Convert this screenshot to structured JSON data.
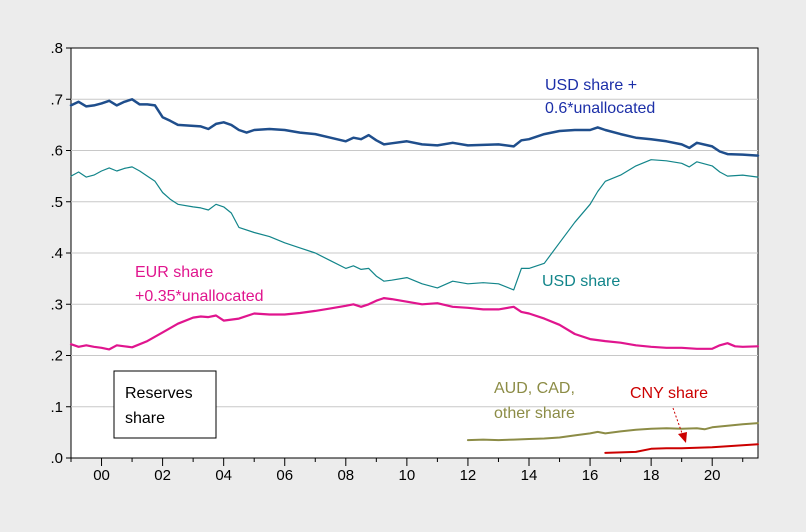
{
  "chart_data": {
    "type": "line",
    "x_start": 1999.0,
    "x_end": 2021.5,
    "xlim": [
      1999.0,
      2021.5
    ],
    "ylim": [
      0.0,
      0.8
    ],
    "x_ticks": [
      {
        "value": 2000,
        "label": "00"
      },
      {
        "value": 2002,
        "label": "02"
      },
      {
        "value": 2004,
        "label": "04"
      },
      {
        "value": 2006,
        "label": "06"
      },
      {
        "value": 2008,
        "label": "08"
      },
      {
        "value": 2010,
        "label": "10"
      },
      {
        "value": 2012,
        "label": "12"
      },
      {
        "value": 2014,
        "label": "14"
      },
      {
        "value": 2016,
        "label": "16"
      },
      {
        "value": 2018,
        "label": "18"
      },
      {
        "value": 2020,
        "label": "20"
      }
    ],
    "y_ticks": [
      {
        "value": 0.0,
        "label": ".0"
      },
      {
        "value": 0.1,
        "label": ".1"
      },
      {
        "value": 0.2,
        "label": ".2"
      },
      {
        "value": 0.3,
        "label": ".3"
      },
      {
        "value": 0.4,
        "label": ".4"
      },
      {
        "value": 0.5,
        "label": ".5"
      },
      {
        "value": 0.6,
        "label": ".6"
      },
      {
        "value": 0.7,
        "label": ".7"
      },
      {
        "value": 0.8,
        "label": ".8"
      }
    ],
    "grid": true,
    "legend_box": {
      "line1": "Reserves",
      "line2": "share"
    },
    "series": [
      {
        "name": "USD share + 0.6*unallocated",
        "color": "#1f4e8c",
        "width": 2.5,
        "points": [
          [
            1999.0,
            0.688
          ],
          [
            1999.25,
            0.695
          ],
          [
            1999.5,
            0.686
          ],
          [
            1999.75,
            0.688
          ],
          [
            2000.0,
            0.692
          ],
          [
            2000.25,
            0.697
          ],
          [
            2000.5,
            0.688
          ],
          [
            2000.75,
            0.695
          ],
          [
            2001.0,
            0.7
          ],
          [
            2001.25,
            0.69
          ],
          [
            2001.5,
            0.69
          ],
          [
            2001.75,
            0.688
          ],
          [
            2002.0,
            0.665
          ],
          [
            2002.25,
            0.658
          ],
          [
            2002.5,
            0.65
          ],
          [
            2003.0,
            0.648
          ],
          [
            2003.25,
            0.647
          ],
          [
            2003.5,
            0.642
          ],
          [
            2003.75,
            0.652
          ],
          [
            2004.0,
            0.655
          ],
          [
            2004.25,
            0.65
          ],
          [
            2004.5,
            0.64
          ],
          [
            2004.75,
            0.635
          ],
          [
            2005.0,
            0.64
          ],
          [
            2005.5,
            0.642
          ],
          [
            2006.0,
            0.64
          ],
          [
            2006.5,
            0.635
          ],
          [
            2007.0,
            0.632
          ],
          [
            2007.5,
            0.625
          ],
          [
            2008.0,
            0.618
          ],
          [
            2008.25,
            0.625
          ],
          [
            2008.5,
            0.622
          ],
          [
            2008.75,
            0.63
          ],
          [
            2009.0,
            0.62
          ],
          [
            2009.25,
            0.612
          ],
          [
            2009.5,
            0.614
          ],
          [
            2010.0,
            0.618
          ],
          [
            2010.5,
            0.612
          ],
          [
            2011.0,
            0.61
          ],
          [
            2011.5,
            0.615
          ],
          [
            2012.0,
            0.61
          ],
          [
            2012.5,
            0.611
          ],
          [
            2013.0,
            0.612
          ],
          [
            2013.5,
            0.608
          ],
          [
            2013.75,
            0.62
          ],
          [
            2014.0,
            0.622
          ],
          [
            2014.5,
            0.632
          ],
          [
            2015.0,
            0.638
          ],
          [
            2015.5,
            0.64
          ],
          [
            2016.0,
            0.64
          ],
          [
            2016.25,
            0.645
          ],
          [
            2016.5,
            0.64
          ],
          [
            2017.0,
            0.632
          ],
          [
            2017.5,
            0.625
          ],
          [
            2018.0,
            0.622
          ],
          [
            2018.5,
            0.618
          ],
          [
            2019.0,
            0.612
          ],
          [
            2019.25,
            0.605
          ],
          [
            2019.5,
            0.615
          ],
          [
            2020.0,
            0.608
          ],
          [
            2020.25,
            0.598
          ],
          [
            2020.5,
            0.593
          ],
          [
            2021.0,
            0.592
          ],
          [
            2021.5,
            0.59
          ]
        ]
      },
      {
        "name": "USD share",
        "color": "#12858a",
        "width": 1.2,
        "points": [
          [
            1999.0,
            0.55
          ],
          [
            1999.25,
            0.558
          ],
          [
            1999.5,
            0.548
          ],
          [
            1999.75,
            0.552
          ],
          [
            2000.0,
            0.56
          ],
          [
            2000.25,
            0.566
          ],
          [
            2000.5,
            0.56
          ],
          [
            2000.75,
            0.565
          ],
          [
            2001.0,
            0.568
          ],
          [
            2001.25,
            0.56
          ],
          [
            2001.5,
            0.55
          ],
          [
            2001.75,
            0.54
          ],
          [
            2002.0,
            0.518
          ],
          [
            2002.25,
            0.505
          ],
          [
            2002.5,
            0.495
          ],
          [
            2003.0,
            0.49
          ],
          [
            2003.25,
            0.488
          ],
          [
            2003.5,
            0.484
          ],
          [
            2003.75,
            0.495
          ],
          [
            2004.0,
            0.49
          ],
          [
            2004.25,
            0.478
          ],
          [
            2004.5,
            0.45
          ],
          [
            2005.0,
            0.44
          ],
          [
            2005.5,
            0.432
          ],
          [
            2006.0,
            0.42
          ],
          [
            2006.5,
            0.41
          ],
          [
            2007.0,
            0.4
          ],
          [
            2007.5,
            0.385
          ],
          [
            2008.0,
            0.37
          ],
          [
            2008.25,
            0.375
          ],
          [
            2008.5,
            0.368
          ],
          [
            2008.75,
            0.37
          ],
          [
            2009.0,
            0.355
          ],
          [
            2009.25,
            0.345
          ],
          [
            2009.5,
            0.347
          ],
          [
            2010.0,
            0.352
          ],
          [
            2010.5,
            0.34
          ],
          [
            2011.0,
            0.332
          ],
          [
            2011.5,
            0.345
          ],
          [
            2012.0,
            0.34
          ],
          [
            2012.5,
            0.342
          ],
          [
            2013.0,
            0.34
          ],
          [
            2013.5,
            0.328
          ],
          [
            2013.75,
            0.37
          ],
          [
            2014.0,
            0.37
          ],
          [
            2014.5,
            0.38
          ],
          [
            2015.0,
            0.42
          ],
          [
            2015.5,
            0.46
          ],
          [
            2016.0,
            0.495
          ],
          [
            2016.25,
            0.52
          ],
          [
            2016.5,
            0.54
          ],
          [
            2017.0,
            0.552
          ],
          [
            2017.5,
            0.57
          ],
          [
            2018.0,
            0.582
          ],
          [
            2018.5,
            0.58
          ],
          [
            2019.0,
            0.575
          ],
          [
            2019.25,
            0.568
          ],
          [
            2019.5,
            0.578
          ],
          [
            2020.0,
            0.57
          ],
          [
            2020.25,
            0.558
          ],
          [
            2020.5,
            0.55
          ],
          [
            2021.0,
            0.552
          ],
          [
            2021.5,
            0.548
          ]
        ]
      },
      {
        "name": "EUR share +0.35*unallocated",
        "color": "#e0158e",
        "width": 2.2,
        "points": [
          [
            1999.0,
            0.222
          ],
          [
            1999.25,
            0.217
          ],
          [
            1999.5,
            0.22
          ],
          [
            1999.75,
            0.217
          ],
          [
            2000.0,
            0.215
          ],
          [
            2000.25,
            0.212
          ],
          [
            2000.5,
            0.22
          ],
          [
            2000.75,
            0.218
          ],
          [
            2001.0,
            0.216
          ],
          [
            2001.5,
            0.228
          ],
          [
            2002.0,
            0.245
          ],
          [
            2002.5,
            0.262
          ],
          [
            2003.0,
            0.274
          ],
          [
            2003.25,
            0.276
          ],
          [
            2003.5,
            0.275
          ],
          [
            2003.75,
            0.278
          ],
          [
            2004.0,
            0.268
          ],
          [
            2004.5,
            0.272
          ],
          [
            2005.0,
            0.282
          ],
          [
            2005.5,
            0.28
          ],
          [
            2006.0,
            0.28
          ],
          [
            2006.5,
            0.283
          ],
          [
            2007.0,
            0.287
          ],
          [
            2007.5,
            0.292
          ],
          [
            2008.0,
            0.297
          ],
          [
            2008.25,
            0.3
          ],
          [
            2008.5,
            0.295
          ],
          [
            2008.75,
            0.3
          ],
          [
            2009.0,
            0.307
          ],
          [
            2009.25,
            0.312
          ],
          [
            2009.5,
            0.31
          ],
          [
            2010.0,
            0.305
          ],
          [
            2010.5,
            0.3
          ],
          [
            2011.0,
            0.302
          ],
          [
            2011.5,
            0.295
          ],
          [
            2012.0,
            0.293
          ],
          [
            2012.5,
            0.29
          ],
          [
            2013.0,
            0.29
          ],
          [
            2013.5,
            0.295
          ],
          [
            2013.75,
            0.285
          ],
          [
            2014.0,
            0.282
          ],
          [
            2014.5,
            0.272
          ],
          [
            2015.0,
            0.26
          ],
          [
            2015.5,
            0.242
          ],
          [
            2016.0,
            0.232
          ],
          [
            2016.5,
            0.228
          ],
          [
            2017.0,
            0.225
          ],
          [
            2017.5,
            0.22
          ],
          [
            2018.0,
            0.217
          ],
          [
            2018.5,
            0.215
          ],
          [
            2019.0,
            0.215
          ],
          [
            2019.5,
            0.213
          ],
          [
            2020.0,
            0.213
          ],
          [
            2020.25,
            0.22
          ],
          [
            2020.5,
            0.224
          ],
          [
            2020.75,
            0.218
          ],
          [
            2021.0,
            0.217
          ],
          [
            2021.5,
            0.218
          ]
        ]
      },
      {
        "name": "AUD, CAD, other share",
        "color": "#8c8c46",
        "width": 2.0,
        "points": [
          [
            2012.0,
            0.035
          ],
          [
            2012.5,
            0.036
          ],
          [
            2013.0,
            0.035
          ],
          [
            2013.5,
            0.036
          ],
          [
            2014.0,
            0.037
          ],
          [
            2014.5,
            0.038
          ],
          [
            2015.0,
            0.04
          ],
          [
            2015.5,
            0.044
          ],
          [
            2016.0,
            0.048
          ],
          [
            2016.25,
            0.051
          ],
          [
            2016.5,
            0.048
          ],
          [
            2017.0,
            0.052
          ],
          [
            2017.5,
            0.055
          ],
          [
            2018.0,
            0.057
          ],
          [
            2018.5,
            0.058
          ],
          [
            2019.0,
            0.057
          ],
          [
            2019.5,
            0.058
          ],
          [
            2019.75,
            0.056
          ],
          [
            2020.0,
            0.06
          ],
          [
            2020.5,
            0.063
          ],
          [
            2021.0,
            0.066
          ],
          [
            2021.5,
            0.068
          ]
        ]
      },
      {
        "name": "CNY share",
        "color": "#cc0000",
        "width": 2.0,
        "points": [
          [
            2016.5,
            0.01
          ],
          [
            2017.0,
            0.011
          ],
          [
            2017.5,
            0.012
          ],
          [
            2018.0,
            0.018
          ],
          [
            2018.5,
            0.019
          ],
          [
            2019.0,
            0.019
          ],
          [
            2019.5,
            0.02
          ],
          [
            2020.0,
            0.021
          ],
          [
            2020.5,
            0.023
          ],
          [
            2021.0,
            0.025
          ],
          [
            2021.5,
            0.027
          ]
        ]
      }
    ],
    "annotations": [
      {
        "lines": [
          "USD share +",
          "0.6*unallocated"
        ],
        "color": "#1c2fa8"
      },
      {
        "lines": [
          "USD share"
        ],
        "color": "#12858a"
      },
      {
        "lines": [
          "EUR share",
          "+0.35*unallocated"
        ],
        "color": "#e0158e"
      },
      {
        "lines": [
          "AUD, CAD,",
          "other share"
        ],
        "color": "#8c8c46"
      },
      {
        "lines": [
          "CNY share"
        ],
        "color": "#cc0000"
      }
    ]
  }
}
